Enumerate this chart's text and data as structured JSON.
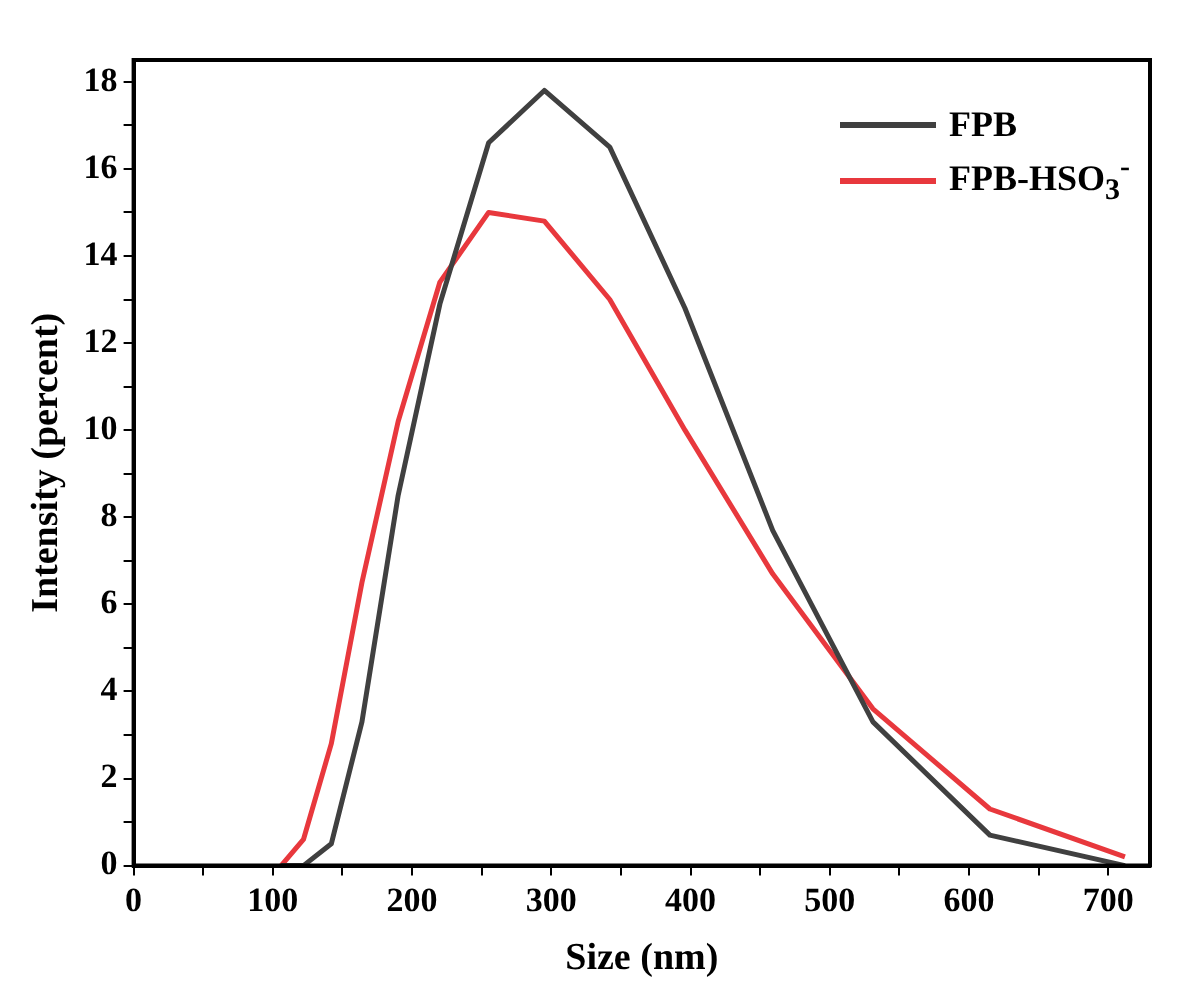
{
  "chart_data": {
    "type": "line",
    "xlabel": "Size (nm)",
    "ylabel": "Intensity (percent)",
    "x": [
      106,
      122,
      142,
      164,
      190,
      220,
      255,
      295,
      342,
      396,
      459,
      531,
      615,
      712
    ],
    "series": [
      {
        "name": "FPB",
        "color": "#404040",
        "values": [
          0,
          0,
          0.5,
          3.3,
          8.5,
          12.9,
          16.6,
          17.8,
          16.5,
          12.8,
          7.7,
          3.3,
          0.7,
          0
        ]
      },
      {
        "name": "FPB-HSO$_{3}$$^{-}$",
        "color": "#e8383d",
        "values": [
          0,
          0.6,
          2.8,
          6.5,
          10.2,
          13.4,
          15.0,
          14.8,
          13.0,
          10.0,
          6.7,
          3.6,
          1.3,
          0.2
        ]
      }
    ],
    "xlim": [
      0,
      730
    ],
    "ylim": [
      0,
      18.5
    ],
    "xticks": [
      0,
      {
        "value": 50,
        "label": null
      },
      100,
      {
        "value": 150,
        "label": null
      },
      200,
      {
        "value": 250,
        "label": null
      },
      300,
      {
        "value": 350,
        "label": null
      },
      400,
      {
        "value": 450,
        "label": null
      },
      500,
      {
        "value": 550,
        "label": null
      },
      600,
      {
        "value": 650,
        "label": null
      },
      700
    ],
    "yticks": [
      0,
      {
        "value": 1,
        "label": null
      },
      2,
      {
        "value": 3,
        "label": null
      },
      4,
      {
        "value": 5,
        "label": null
      },
      6,
      {
        "value": 7,
        "label": null
      },
      8,
      {
        "value": 9,
        "label": null
      },
      10,
      {
        "value": 11,
        "label": null
      },
      12,
      {
        "value": 13,
        "label": null
      },
      14,
      {
        "value": 15,
        "label": null
      },
      16,
      {
        "value": 17,
        "label": null
      },
      18
    ],
    "grid": false,
    "legend": "top right",
    "marker": "none",
    "line_style": "solid"
  }
}
